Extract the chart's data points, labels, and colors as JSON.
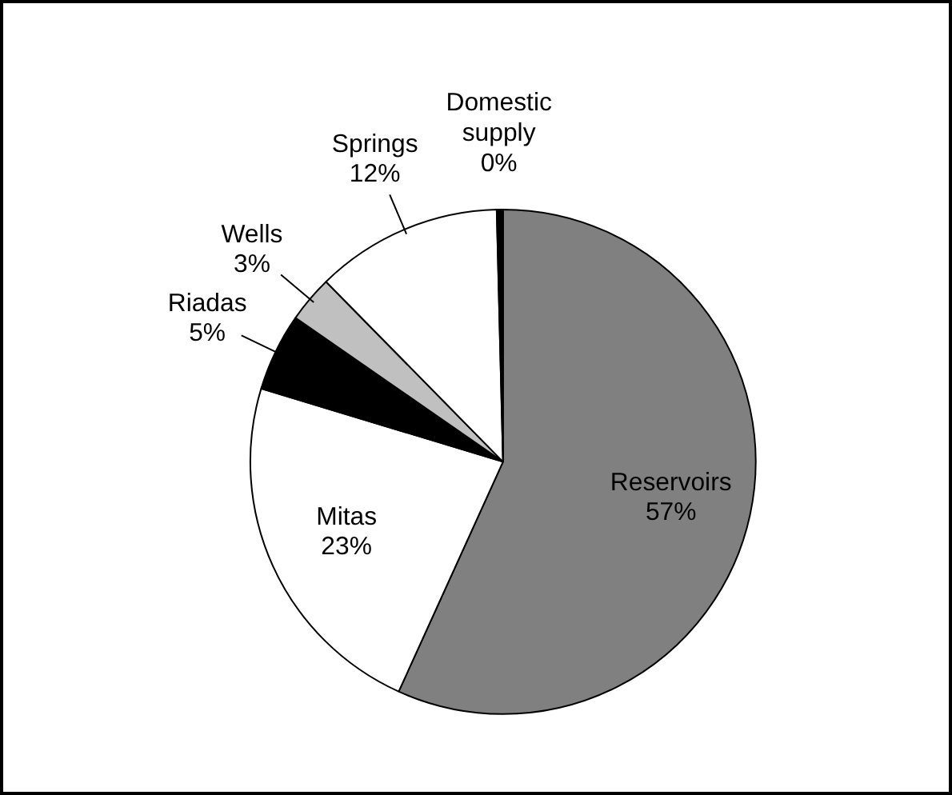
{
  "chart_data": {
    "type": "pie",
    "categories": [
      "Reservoirs",
      "Mitas",
      "Riadas",
      "Wells",
      "Springs",
      "Domestic supply"
    ],
    "values": [
      57,
      23,
      5,
      3,
      12,
      0.4
    ],
    "value_labels": [
      "57%",
      "23%",
      "5%",
      "3%",
      "12%",
      "0%"
    ],
    "colors": [
      "#808080",
      "#ffffff",
      "#000000",
      "#c0c0c0",
      "#ffffff",
      "#000000"
    ],
    "legend": false
  }
}
